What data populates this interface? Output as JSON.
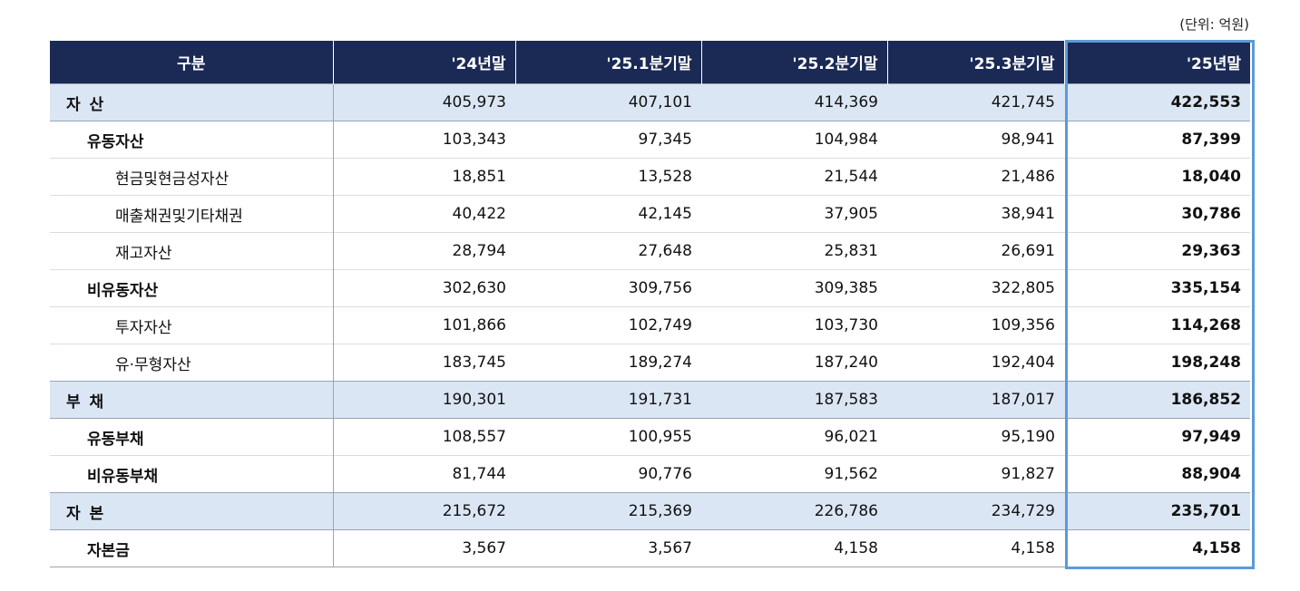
{
  "unit_label": "(단위: 억원)",
  "headers": [
    "구분",
    "'24년말",
    "'25.1분기말",
    "'25.2분기말",
    "'25.3분기말",
    "'25년말"
  ],
  "rows": [
    {
      "label": "자 산",
      "level": "major",
      "values": [
        "405,973",
        "407,101",
        "414,369",
        "421,745",
        "422,553"
      ]
    },
    {
      "label": "유동자산",
      "level": "sub",
      "values": [
        "103,343",
        "97,345",
        "104,984",
        "98,941",
        "87,399"
      ]
    },
    {
      "label": "현금및현금성자산",
      "level": "item",
      "values": [
        "18,851",
        "13,528",
        "21,544",
        "21,486",
        "18,040"
      ]
    },
    {
      "label": "매출채권및기타채권",
      "level": "item",
      "values": [
        "40,422",
        "42,145",
        "37,905",
        "38,941",
        "30,786"
      ]
    },
    {
      "label": "재고자산",
      "level": "item",
      "values": [
        "28,794",
        "27,648",
        "25,831",
        "26,691",
        "29,363"
      ]
    },
    {
      "label": "비유동자산",
      "level": "sub",
      "values": [
        "302,630",
        "309,756",
        "309,385",
        "322,805",
        "335,154"
      ]
    },
    {
      "label": "투자자산",
      "level": "item",
      "values": [
        "101,866",
        "102,749",
        "103,730",
        "109,356",
        "114,268"
      ]
    },
    {
      "label": "유·무형자산",
      "level": "item",
      "values": [
        "183,745",
        "189,274",
        "187,240",
        "192,404",
        "198,248"
      ]
    },
    {
      "label": "부 채",
      "level": "major",
      "values": [
        "190,301",
        "191,731",
        "187,583",
        "187,017",
        "186,852"
      ]
    },
    {
      "label": "유동부채",
      "level": "sub",
      "values": [
        "108,557",
        "100,955",
        "96,021",
        "95,190",
        "97,949"
      ]
    },
    {
      "label": "비유동부채",
      "level": "sub",
      "values": [
        "81,744",
        "90,776",
        "91,562",
        "91,827",
        "88,904"
      ]
    },
    {
      "label": "자 본",
      "level": "major",
      "values": [
        "215,672",
        "215,369",
        "226,786",
        "234,729",
        "235,701"
      ]
    },
    {
      "label": "자본금",
      "level": "sub",
      "values": [
        "3,567",
        "3,567",
        "4,158",
        "4,158",
        "4,158"
      ]
    }
  ],
  "highlight_color": "#5b9bd5",
  "header_bg": "#1b2a55",
  "major_row_bg": "#dbe6f4"
}
